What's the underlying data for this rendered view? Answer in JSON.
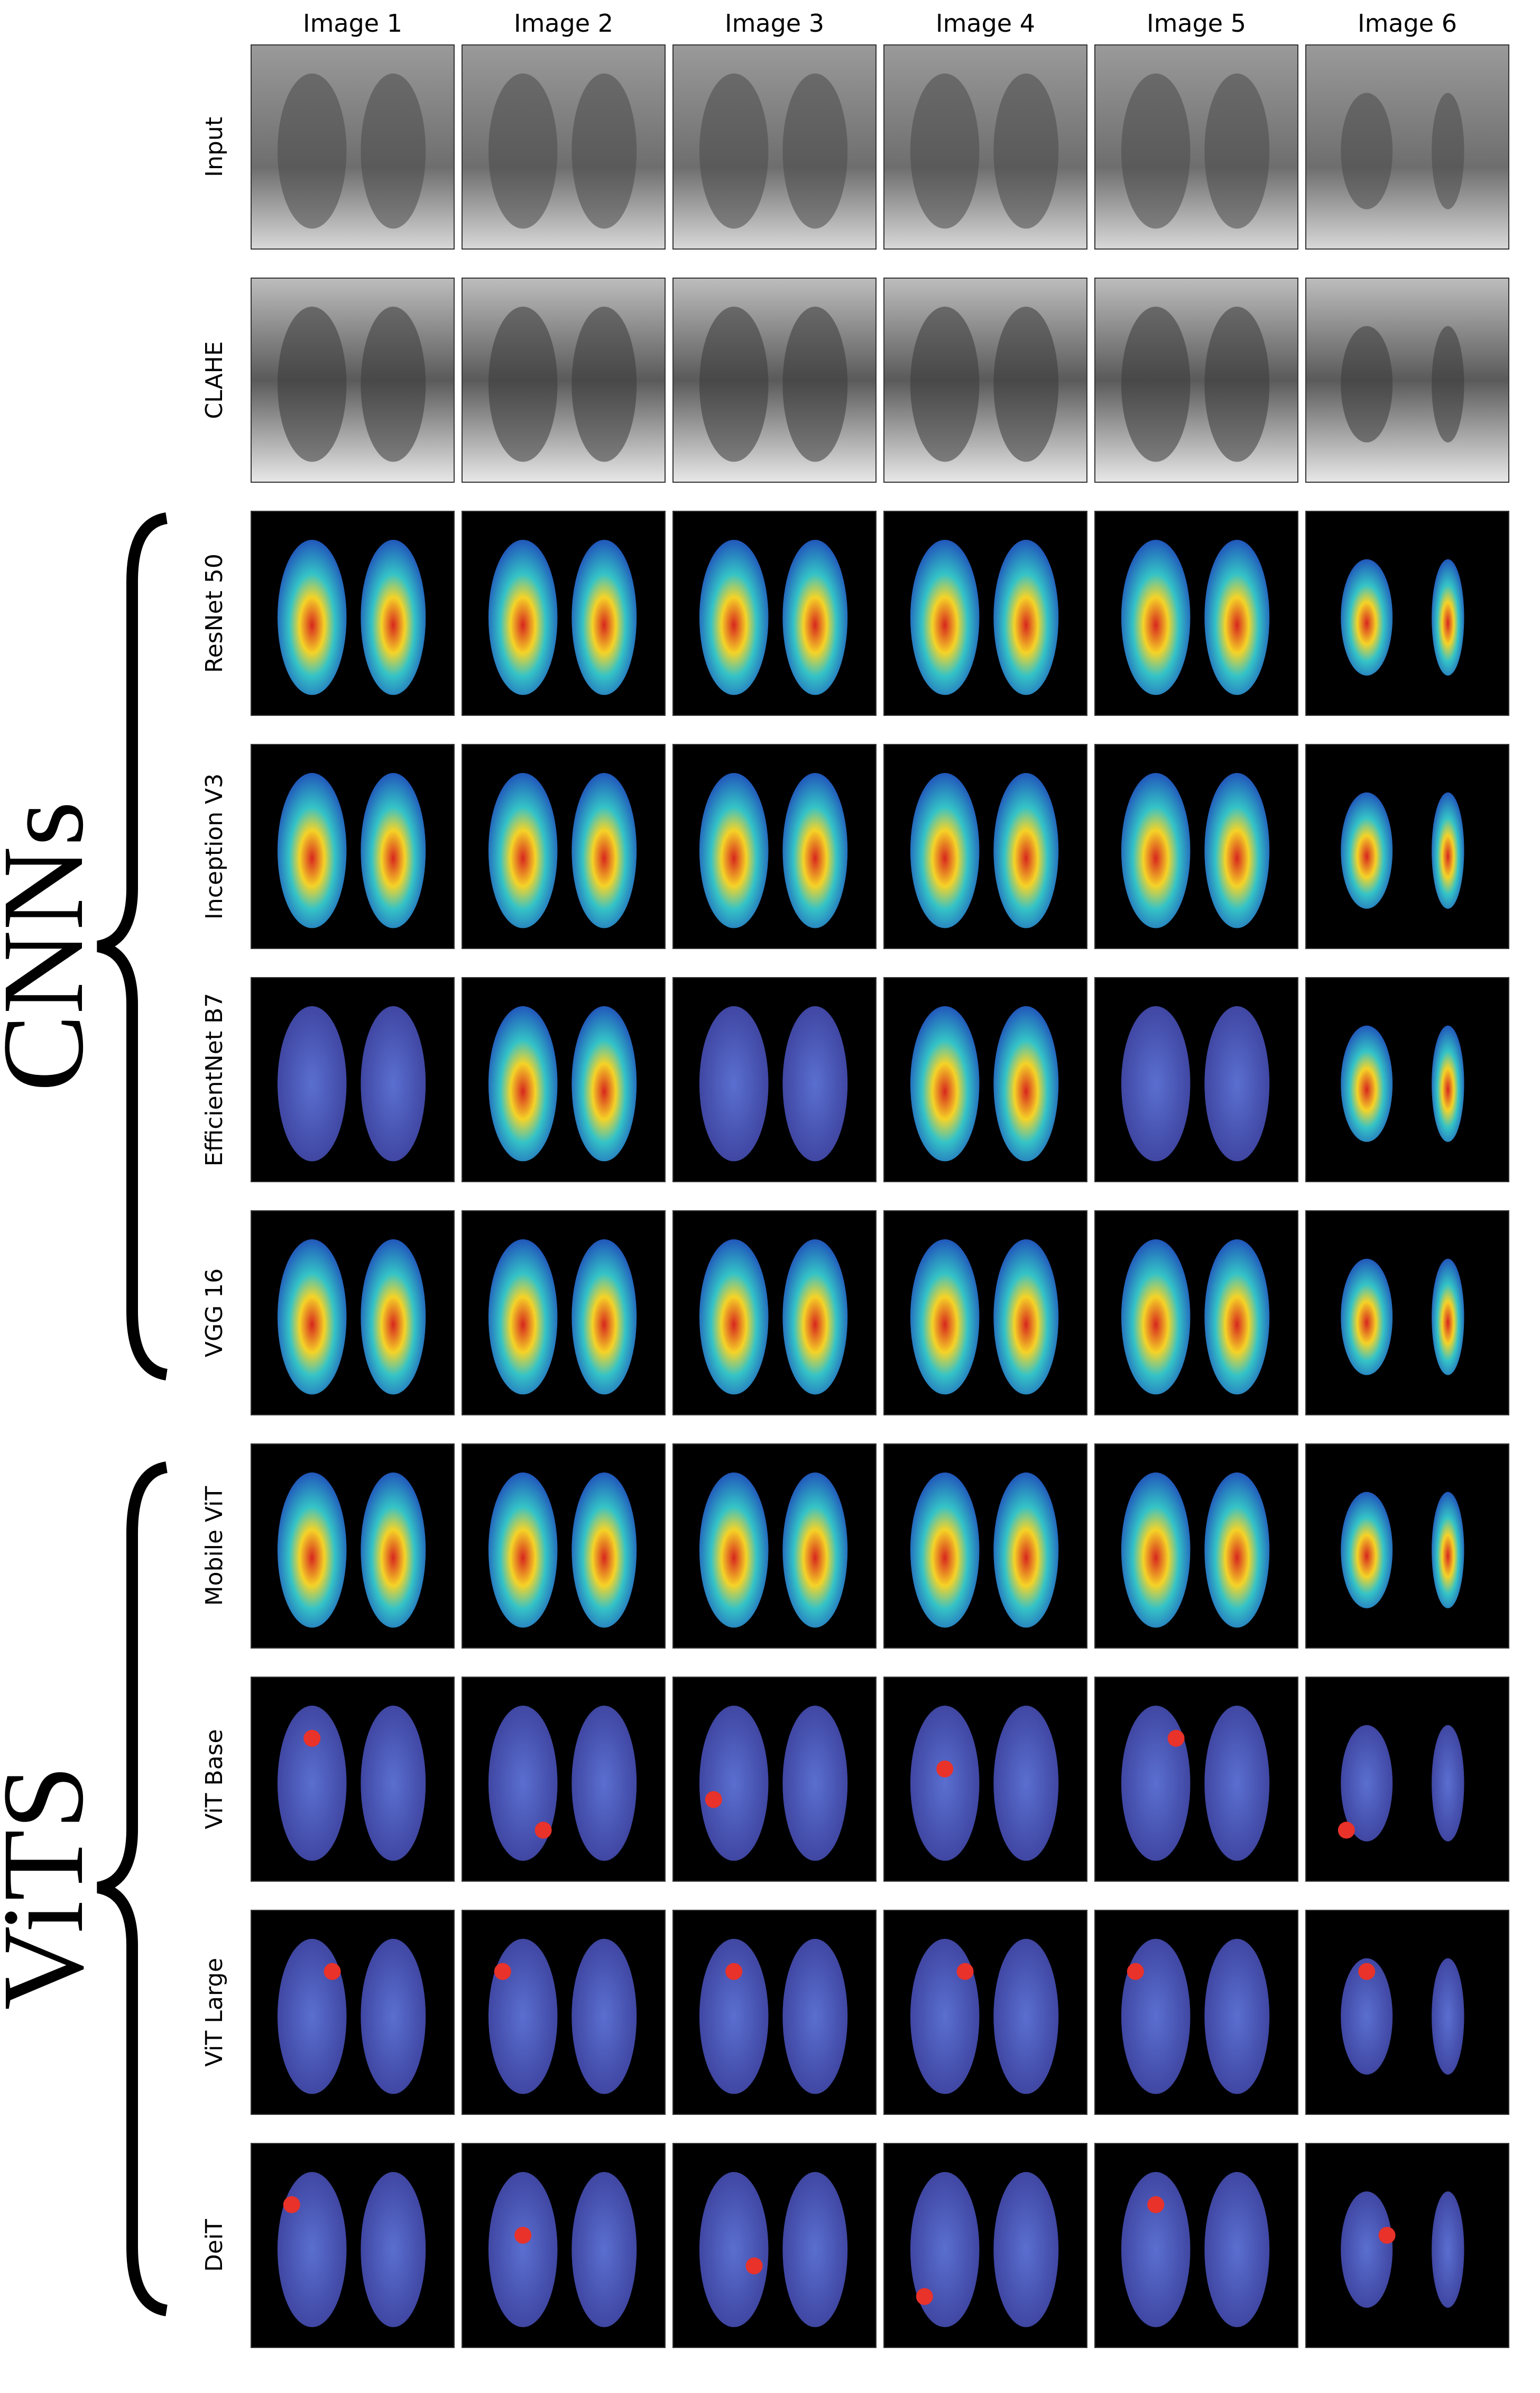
{
  "columns": [
    "Image 1",
    "Image 2",
    "Image 3",
    "Image 4",
    "Image 5",
    "Image 6"
  ],
  "rows": [
    "Input",
    "CLAHE",
    "ResNet 50",
    "Inception V3",
    "EfficientNet B7",
    "VGG 16",
    "Mobile ViT",
    "ViT Base",
    "ViT Large",
    "DeiT"
  ],
  "groups": [
    {
      "label": "CNNs"
    },
    {
      "label": "ViTS"
    }
  ]
}
